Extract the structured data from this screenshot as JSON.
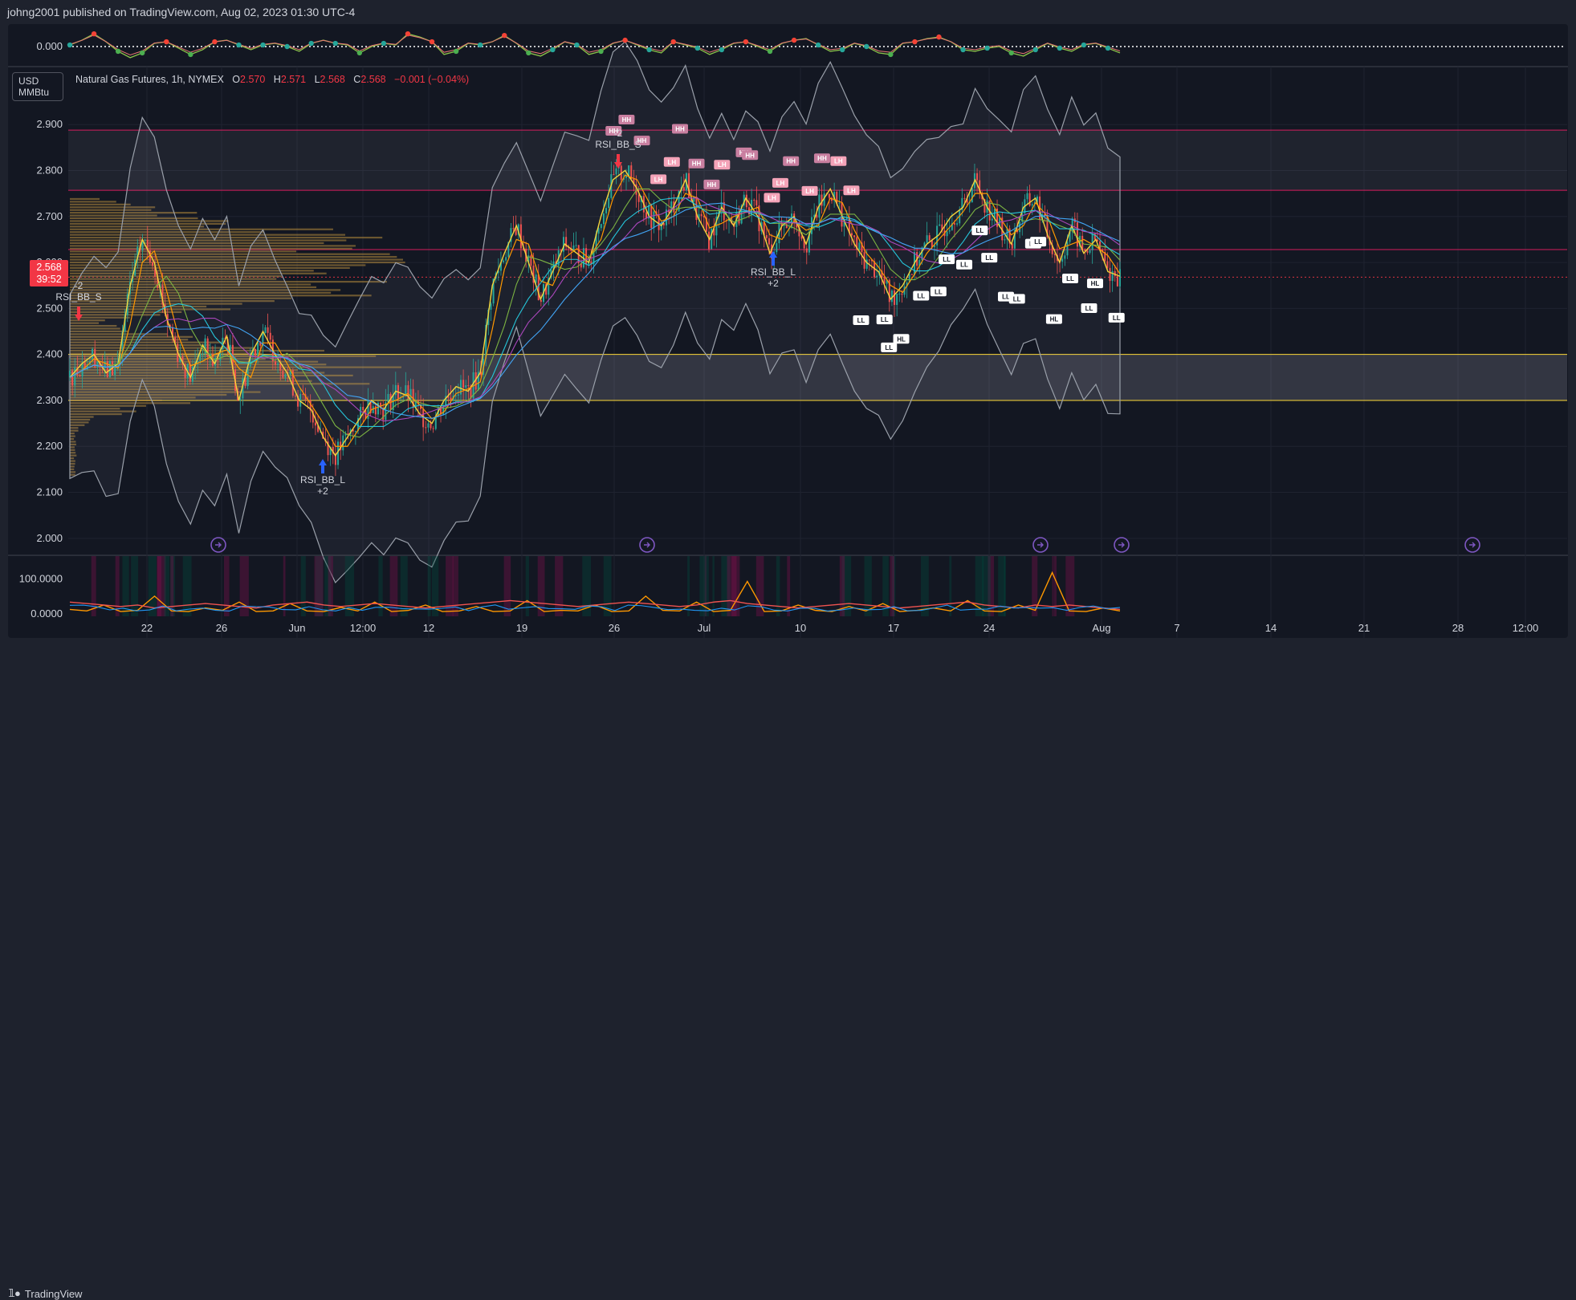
{
  "header": {
    "published": "johng2001 published on TradingView.com, Aug 02, 2023 01:30 UTC-4"
  },
  "footer": {
    "brand": "TradingView"
  },
  "symbol": {
    "unit_line1": "USD",
    "unit_line2": "MMBtu",
    "name": "Natural Gas Futures, 1h, NYMEX",
    "o_label": "O",
    "o": "2.570",
    "h_label": "H",
    "h": "2.571",
    "l_label": "L",
    "l": "2.568",
    "c_label": "C",
    "c": "2.568",
    "change": "−0.001 (−0.04%)"
  },
  "price_tag": {
    "price": "2.568",
    "countdown": "39:52"
  },
  "colors": {
    "up": "#26a69a",
    "down": "#ef5350",
    "accent": "#f23645",
    "resistance": "#e91e63",
    "zone": "#fdd835",
    "ma_fast": "#f5d33b",
    "ma_mid": "#ff9800",
    "ma_slow": "#26c6da",
    "profile": "#b58b3c"
  },
  "chart_data": [
    {
      "type": "line",
      "name": "oscillator",
      "y_tick_labels": [
        "0.000"
      ],
      "ylim": [
        -1,
        1
      ],
      "series": [
        {
          "values": [
            0.1,
            0.4,
            0.8,
            0.3,
            -0.3,
            -0.7,
            -0.4,
            0.2,
            0.3,
            -0.1,
            -0.5,
            -0.2,
            0.3,
            0.4,
            0.1,
            -0.2,
            0.1,
            0.2,
            0.0,
            -0.3,
            0.2,
            0.4,
            0.2,
            0.1,
            -0.4,
            0.0,
            0.2,
            0.1,
            0.8,
            0.6,
            0.3,
            -0.5,
            -0.3,
            0.2,
            0.1,
            0.3,
            0.7,
            0.2,
            -0.4,
            -0.6,
            -0.2,
            0.3,
            0.1,
            -0.5,
            -0.3,
            0.2,
            0.4,
            0.1,
            -0.2,
            -0.4,
            0.3,
            0.1,
            -0.1,
            -0.5,
            -0.2,
            0.2,
            0.3,
            0.0,
            -0.3,
            0.2,
            0.4,
            0.5,
            0.1,
            -0.3,
            -0.2,
            0.2,
            0.0,
            -0.4,
            -0.5,
            0.2,
            0.3,
            0.5,
            0.6,
            0.3,
            -0.2,
            -0.3,
            -0.1,
            0.0,
            -0.4,
            -0.6,
            -0.2,
            0.2,
            -0.1,
            -0.3,
            0.1,
            0.2,
            -0.1,
            -0.4
          ]
        }
      ]
    },
    {
      "type": "candlestick",
      "name": "Natural Gas Futures 1h",
      "x_tick_labels": [
        "22",
        "26",
        "Jun",
        "12:00",
        "12",
        "19",
        "26",
        "Jul",
        "10",
        "17",
        "24",
        "Aug",
        "7",
        "14",
        "21",
        "28",
        "12:00"
      ],
      "y_tick_labels": [
        "2.900",
        "2.800",
        "2.700",
        "2.600",
        "2.500",
        "2.400",
        "2.300",
        "2.200",
        "2.100",
        "2.000"
      ],
      "ylim": [
        1.97,
        2.93
      ],
      "close_path": [
        2.35,
        2.38,
        2.4,
        2.36,
        2.38,
        2.55,
        2.65,
        2.6,
        2.48,
        2.4,
        2.35,
        2.42,
        2.38,
        2.44,
        2.3,
        2.4,
        2.45,
        2.4,
        2.36,
        2.3,
        2.28,
        2.22,
        2.18,
        2.22,
        2.26,
        2.3,
        2.28,
        2.32,
        2.31,
        2.27,
        2.25,
        2.3,
        2.33,
        2.32,
        2.36,
        2.55,
        2.62,
        2.68,
        2.6,
        2.52,
        2.58,
        2.64,
        2.62,
        2.6,
        2.7,
        2.78,
        2.8,
        2.76,
        2.7,
        2.68,
        2.72,
        2.78,
        2.7,
        2.65,
        2.72,
        2.68,
        2.74,
        2.7,
        2.62,
        2.68,
        2.7,
        2.64,
        2.72,
        2.76,
        2.7,
        2.64,
        2.6,
        2.58,
        2.52,
        2.55,
        2.6,
        2.64,
        2.66,
        2.7,
        2.72,
        2.78,
        2.72,
        2.68,
        2.64,
        2.72,
        2.74,
        2.66,
        2.6,
        2.68,
        2.62,
        2.65,
        2.58,
        2.57
      ],
      "horizontal_levels": [
        2.888,
        2.757,
        2.628,
        2.568
      ],
      "zone": [
        2.3,
        2.4
      ],
      "signals": [
        {
          "text": "-2",
          "text2": "RSI_BB_S",
          "price": 2.46,
          "dir": "down"
        },
        {
          "text": "RSI_BB_L",
          "text2": "+2",
          "price": 2.18,
          "dir": "up"
        },
        {
          "text": "-2",
          "text2": "RSI_BB_S",
          "price": 2.79,
          "dir": "down"
        },
        {
          "text": "RSI_BB_L",
          "text2": "+2",
          "price": 2.58,
          "dir": "up"
        }
      ],
      "labels": [
        "HH",
        "HH",
        "HH",
        "LH",
        "LH",
        "HH",
        "HH",
        "HH",
        "LH",
        "HH",
        "HH",
        "LH",
        "LH",
        "HH",
        "LH",
        "HH",
        "LH",
        "LH",
        "LL",
        "LL",
        "LL",
        "HL",
        "LL",
        "LL",
        "LL",
        "LL",
        "LL",
        "LL",
        "LL",
        "LL",
        "LL",
        "LL",
        "HL",
        "LL",
        "LL",
        "HL",
        "LL"
      ]
    },
    {
      "type": "line",
      "name": "bottom-indicator",
      "y_tick_labels": [
        "100.0000",
        "0.0000"
      ],
      "ylim": [
        0,
        150
      ],
      "series": [
        {
          "color": "#ff9800",
          "values": [
            15,
            10,
            30,
            8,
            12,
            60,
            10,
            8,
            20,
            12,
            40,
            8,
            10,
            35,
            10,
            8,
            22,
            10,
            40,
            8,
            12,
            30,
            8,
            10,
            25,
            8,
            10,
            45,
            8,
            12,
            10,
            30,
            8,
            10,
            60,
            12,
            10,
            40,
            8,
            12,
            110,
            8,
            10,
            30,
            12,
            8,
            25,
            10,
            35,
            8,
            12,
            20,
            10,
            45,
            10,
            8,
            30,
            12,
            140,
            10,
            8,
            20,
            10
          ]
        },
        {
          "color": "#ef5350",
          "values": [
            40,
            35,
            30,
            25,
            30,
            20,
            25,
            30,
            35,
            30,
            25,
            20,
            30,
            35,
            40,
            30,
            25,
            30,
            35,
            30,
            25,
            20,
            25,
            30,
            35,
            40,
            45,
            40,
            35,
            30,
            25,
            30,
            35,
            40,
            35,
            30,
            25,
            30,
            40,
            45,
            35,
            30,
            25,
            20,
            25,
            30,
            35,
            30,
            25,
            20,
            25,
            30,
            35,
            40,
            30,
            25,
            20,
            30,
            25,
            30,
            25,
            20,
            15
          ]
        }
      ]
    }
  ]
}
